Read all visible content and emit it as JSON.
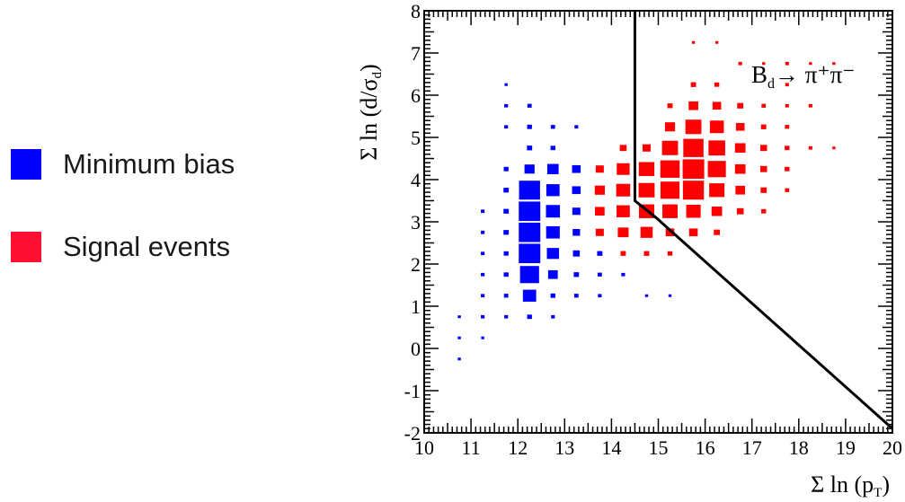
{
  "colors": {
    "background": "#ffffff",
    "minimum_bias": "#0000ff",
    "signal": "#ff0000",
    "axes": "#000000",
    "cut_line": "#000000"
  },
  "legend": {
    "items": [
      {
        "label": "Minimum bias",
        "color": "#0000ff"
      },
      {
        "label": "Signal events",
        "color": "#ff0000"
      }
    ]
  },
  "chart_data": {
    "type": "heatmap",
    "title": "",
    "xlabel": "Σ ln (p_T)",
    "ylabel": "Σ ln (d/σ_d)",
    "xlim": [
      10,
      20
    ],
    "ylim": [
      -2,
      8
    ],
    "xticks": [
      "10",
      "11",
      "12",
      "13",
      "14",
      "15",
      "16",
      "17",
      "18",
      "19",
      "20"
    ],
    "yticks": [
      "-2",
      "-1",
      "0",
      "1",
      "2",
      "3",
      "4",
      "5",
      "6",
      "7",
      "8"
    ],
    "annotation": {
      "base": "B",
      "sub": "d",
      "rest": "→ π⁺π⁻"
    },
    "bin_size": 0.5,
    "legend_position": "left, outside plot",
    "cut_line": {
      "points": [
        [
          14.5,
          8.0
        ],
        [
          14.5,
          3.5
        ],
        [
          14.95,
          3.1
        ],
        [
          20.0,
          -1.9
        ]
      ]
    },
    "series": [
      {
        "name": "Minimum bias",
        "color": "#0000ff",
        "note": "box area proportional to bin content, relative scale 0-1",
        "cells": [
          [
            12.25,
            4.25,
            0.22
          ],
          [
            12.25,
            3.75,
            0.95
          ],
          [
            12.25,
            3.25,
            1.0
          ],
          [
            12.25,
            2.75,
            1.0
          ],
          [
            12.25,
            2.25,
            1.0
          ],
          [
            12.25,
            1.75,
            0.78
          ],
          [
            12.25,
            1.25,
            0.38
          ],
          [
            12.25,
            0.75,
            0.05
          ],
          [
            12.25,
            4.75,
            0.06
          ],
          [
            12.25,
            5.25,
            0.05
          ],
          [
            12.25,
            5.75,
            0.04
          ],
          [
            12.75,
            4.25,
            0.28
          ],
          [
            12.75,
            3.75,
            0.38
          ],
          [
            12.75,
            3.25,
            0.42
          ],
          [
            12.75,
            2.75,
            0.4
          ],
          [
            12.75,
            2.25,
            0.32
          ],
          [
            12.75,
            1.75,
            0.2
          ],
          [
            12.75,
            1.25,
            0.05
          ],
          [
            12.75,
            4.75,
            0.05
          ],
          [
            12.75,
            5.25,
            0.04
          ],
          [
            12.75,
            0.75,
            0.03
          ],
          [
            13.25,
            4.25,
            0.16
          ],
          [
            13.25,
            3.75,
            0.16
          ],
          [
            13.25,
            3.25,
            0.14
          ],
          [
            13.25,
            2.75,
            0.12
          ],
          [
            13.25,
            2.25,
            0.1
          ],
          [
            13.25,
            1.75,
            0.06
          ],
          [
            13.25,
            1.25,
            0.04
          ],
          [
            13.25,
            5.25,
            0.03
          ],
          [
            13.75,
            2.75,
            0.08
          ],
          [
            13.75,
            2.25,
            0.06
          ],
          [
            13.75,
            1.75,
            0.04
          ],
          [
            13.75,
            1.25,
            0.03
          ],
          [
            11.75,
            4.25,
            0.05
          ],
          [
            11.75,
            3.75,
            0.06
          ],
          [
            11.75,
            3.25,
            0.06
          ],
          [
            11.75,
            2.75,
            0.06
          ],
          [
            11.75,
            2.25,
            0.05
          ],
          [
            11.75,
            1.75,
            0.05
          ],
          [
            11.75,
            1.25,
            0.04
          ],
          [
            11.75,
            0.75,
            0.03
          ],
          [
            11.75,
            5.25,
            0.03
          ],
          [
            11.75,
            5.75,
            0.03
          ],
          [
            11.75,
            6.25,
            0.02
          ],
          [
            11.25,
            3.25,
            0.03
          ],
          [
            11.25,
            2.75,
            0.03
          ],
          [
            11.25,
            2.25,
            0.03
          ],
          [
            11.25,
            1.75,
            0.03
          ],
          [
            11.25,
            1.25,
            0.03
          ],
          [
            11.25,
            0.75,
            0.03
          ],
          [
            11.25,
            0.25,
            0.02
          ],
          [
            10.75,
            0.75,
            0.02
          ],
          [
            10.75,
            0.25,
            0.02
          ],
          [
            10.75,
            -0.25,
            0.02
          ],
          [
            14.25,
            1.75,
            0.03
          ],
          [
            14.75,
            1.25,
            0.02
          ],
          [
            15.25,
            1.25,
            0.02
          ]
        ]
      },
      {
        "name": "Signal events",
        "color": "#ff0000",
        "note": "box area proportional to bin content, relative scale 0-1",
        "cells": [
          [
            13.75,
            3.75,
            0.22
          ],
          [
            13.75,
            3.25,
            0.2
          ],
          [
            13.75,
            4.25,
            0.14
          ],
          [
            13.75,
            2.75,
            0.14
          ],
          [
            14.25,
            3.75,
            0.42
          ],
          [
            14.25,
            3.25,
            0.38
          ],
          [
            14.25,
            4.25,
            0.36
          ],
          [
            14.25,
            2.75,
            0.25
          ],
          [
            14.25,
            4.75,
            0.1
          ],
          [
            14.25,
            2.25,
            0.06
          ],
          [
            14.75,
            3.75,
            0.55
          ],
          [
            14.75,
            3.25,
            0.5
          ],
          [
            14.75,
            4.25,
            0.52
          ],
          [
            14.75,
            2.75,
            0.32
          ],
          [
            14.75,
            4.75,
            0.14
          ],
          [
            14.75,
            2.25,
            0.06
          ],
          [
            15.25,
            4.25,
            0.8
          ],
          [
            15.25,
            3.75,
            0.78
          ],
          [
            15.25,
            4.75,
            0.55
          ],
          [
            15.25,
            3.25,
            0.5
          ],
          [
            15.25,
            5.25,
            0.22
          ],
          [
            15.25,
            2.75,
            0.16
          ],
          [
            15.25,
            5.75,
            0.06
          ],
          [
            15.25,
            2.25,
            0.05
          ],
          [
            15.75,
            4.25,
            1.0
          ],
          [
            15.75,
            3.75,
            0.95
          ],
          [
            15.75,
            4.75,
            0.88
          ],
          [
            15.75,
            5.25,
            0.55
          ],
          [
            15.75,
            3.25,
            0.45
          ],
          [
            15.75,
            5.75,
            0.2
          ],
          [
            15.75,
            2.75,
            0.16
          ],
          [
            15.75,
            6.25,
            0.06
          ],
          [
            16.25,
            4.25,
            0.7
          ],
          [
            16.25,
            4.75,
            0.6
          ],
          [
            16.25,
            3.75,
            0.5
          ],
          [
            16.25,
            5.25,
            0.42
          ],
          [
            16.25,
            3.25,
            0.24
          ],
          [
            16.25,
            5.75,
            0.16
          ],
          [
            16.25,
            2.75,
            0.08
          ],
          [
            16.25,
            6.25,
            0.05
          ],
          [
            16.75,
            4.25,
            0.24
          ],
          [
            16.75,
            4.75,
            0.24
          ],
          [
            16.75,
            3.75,
            0.2
          ],
          [
            16.75,
            5.25,
            0.16
          ],
          [
            16.75,
            3.25,
            0.1
          ],
          [
            16.75,
            5.75,
            0.08
          ],
          [
            17.25,
            4.25,
            0.1
          ],
          [
            17.25,
            4.75,
            0.1
          ],
          [
            17.25,
            3.75,
            0.08
          ],
          [
            17.25,
            5.25,
            0.06
          ],
          [
            17.25,
            3.25,
            0.05
          ],
          [
            17.25,
            5.75,
            0.04
          ],
          [
            17.75,
            4.25,
            0.05
          ],
          [
            17.75,
            4.75,
            0.05
          ],
          [
            17.75,
            3.75,
            0.04
          ],
          [
            17.75,
            5.25,
            0.04
          ],
          [
            17.75,
            5.75,
            0.03
          ],
          [
            17.75,
            6.25,
            0.03
          ],
          [
            17.75,
            6.75,
            0.03
          ],
          [
            18.25,
            4.75,
            0.03
          ],
          [
            18.25,
            5.75,
            0.03
          ],
          [
            18.25,
            6.75,
            0.02
          ],
          [
            18.75,
            4.75,
            0.02
          ],
          [
            18.75,
            6.75,
            0.02
          ],
          [
            15.75,
            7.25,
            0.02
          ],
          [
            16.25,
            7.25,
            0.02
          ],
          [
            16.75,
            6.75,
            0.03
          ],
          [
            17.25,
            6.75,
            0.02
          ]
        ]
      }
    ]
  }
}
